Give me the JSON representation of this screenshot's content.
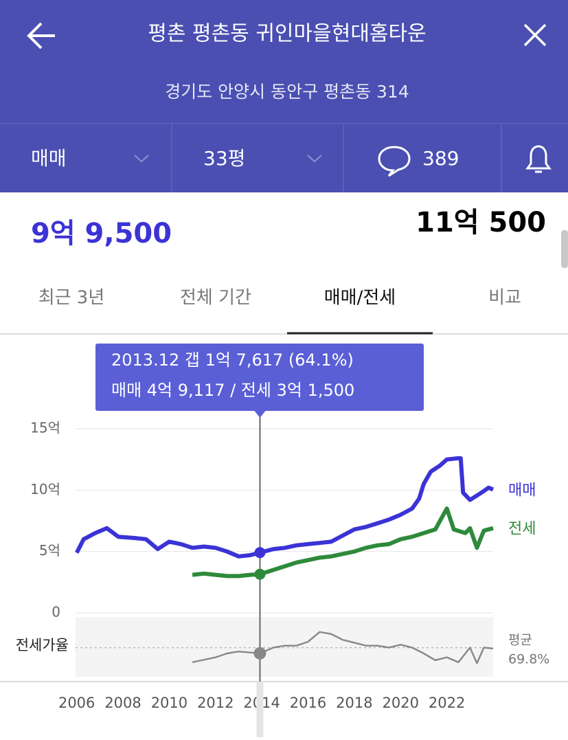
{
  "header": {
    "title": "평촌 평촌동 귀인마을현대홈타운",
    "address": "경기도 안양시 동안구 평촌동 314"
  },
  "filters": {
    "deal_type": "매매",
    "size": "33평",
    "comments": "389"
  },
  "prices": {
    "left": "9억 9,500",
    "right": "11억 500"
  },
  "tabs": [
    "최근 3년",
    "전체 기간",
    "매매/전세",
    "비교"
  ],
  "chart_data": {
    "type": "line",
    "tooltip": [
      "2013.12  갭 1억 7,617 (64.1%)",
      "매매 4억 9,117 / 전세 3억 1,500"
    ],
    "cursor_x": 2013.92,
    "xlim": [
      2005.95,
      2024
    ],
    "xticks": [
      2006,
      2008,
      2010,
      2012,
      2014,
      2016,
      2018,
      2020,
      2022
    ],
    "ylim": [
      0,
      15
    ],
    "yticks": [
      0,
      {
        "value": 5,
        "label": "5억"
      },
      {
        "value": 10,
        "label": "10억"
      },
      {
        "value": 15,
        "label": "15억"
      }
    ],
    "grid": true,
    "series": [
      {
        "name": "매매",
        "color": "#3b33d6",
        "x": [
          2006,
          2006.3,
          2006.8,
          2007.3,
          2007.8,
          2008.5,
          2009,
          2009.5,
          2010,
          2010.5,
          2011,
          2011.5,
          2012,
          2012.5,
          2013,
          2013.5,
          2013.92,
          2014.5,
          2015,
          2015.5,
          2016,
          2016.5,
          2017,
          2017.5,
          2018,
          2018.5,
          2019,
          2019.5,
          2020,
          2020.5,
          2020.8,
          2021,
          2021.3,
          2021.7,
          2022,
          2022.5,
          2022.6,
          2022.7,
          2023,
          2023.5,
          2023.8,
          2024
        ],
        "values": [
          4.9,
          6,
          6.5,
          6.9,
          6.2,
          6.1,
          6,
          5.2,
          5.8,
          5.6,
          5.3,
          5.4,
          5.3,
          5,
          4.6,
          4.7,
          4.91,
          5.2,
          5.3,
          5.5,
          5.6,
          5.7,
          5.8,
          6.3,
          6.8,
          7,
          7.3,
          7.6,
          8,
          8.5,
          9.3,
          10.5,
          11.5,
          12,
          12.5,
          12.6,
          12.6,
          9.8,
          9.2,
          9.8,
          10.2,
          10.05
        ]
      },
      {
        "name": "전세",
        "color": "#2e8a3b",
        "x": [
          2011,
          2011.5,
          2012,
          2012.5,
          2013,
          2013.5,
          2013.92,
          2014.5,
          2015,
          2015.5,
          2016,
          2016.5,
          2017,
          2017.5,
          2018,
          2018.5,
          2019,
          2019.5,
          2020,
          2020.5,
          2021,
          2021.5,
          2022,
          2022.3,
          2022.8,
          2023,
          2023.3,
          2023.6,
          2024
        ],
        "values": [
          3.1,
          3.2,
          3.1,
          3,
          3,
          3.1,
          3.15,
          3.5,
          3.8,
          4.1,
          4.3,
          4.5,
          4.6,
          4.8,
          5,
          5.3,
          5.5,
          5.6,
          6,
          6.2,
          6.5,
          6.8,
          8.5,
          6.8,
          6.5,
          6.9,
          5.3,
          6.7,
          6.9
        ]
      }
    ],
    "ratio": {
      "name": "전세가율",
      "color": "#8a8a8a",
      "lim": [
        40,
        100
      ],
      "x": [
        2011,
        2012,
        2012.5,
        2013,
        2013.92,
        2014.5,
        2015,
        2015.5,
        2016,
        2016.5,
        2017,
        2017.5,
        2018,
        2018.5,
        2019,
        2019.5,
        2020,
        2020.5,
        2021,
        2021.5,
        2022,
        2022.5,
        2023,
        2023.3,
        2023.6,
        2024
      ],
      "values": [
        55,
        60,
        64,
        66,
        64.1,
        70,
        72,
        72,
        76,
        86,
        84,
        78,
        75,
        72,
        72,
        70,
        73,
        70,
        64,
        57,
        60,
        55,
        70,
        54,
        70,
        69
      ],
      "average_title": "평균",
      "average": {
        "value": 69.8,
        "label": "69.8%"
      }
    }
  }
}
